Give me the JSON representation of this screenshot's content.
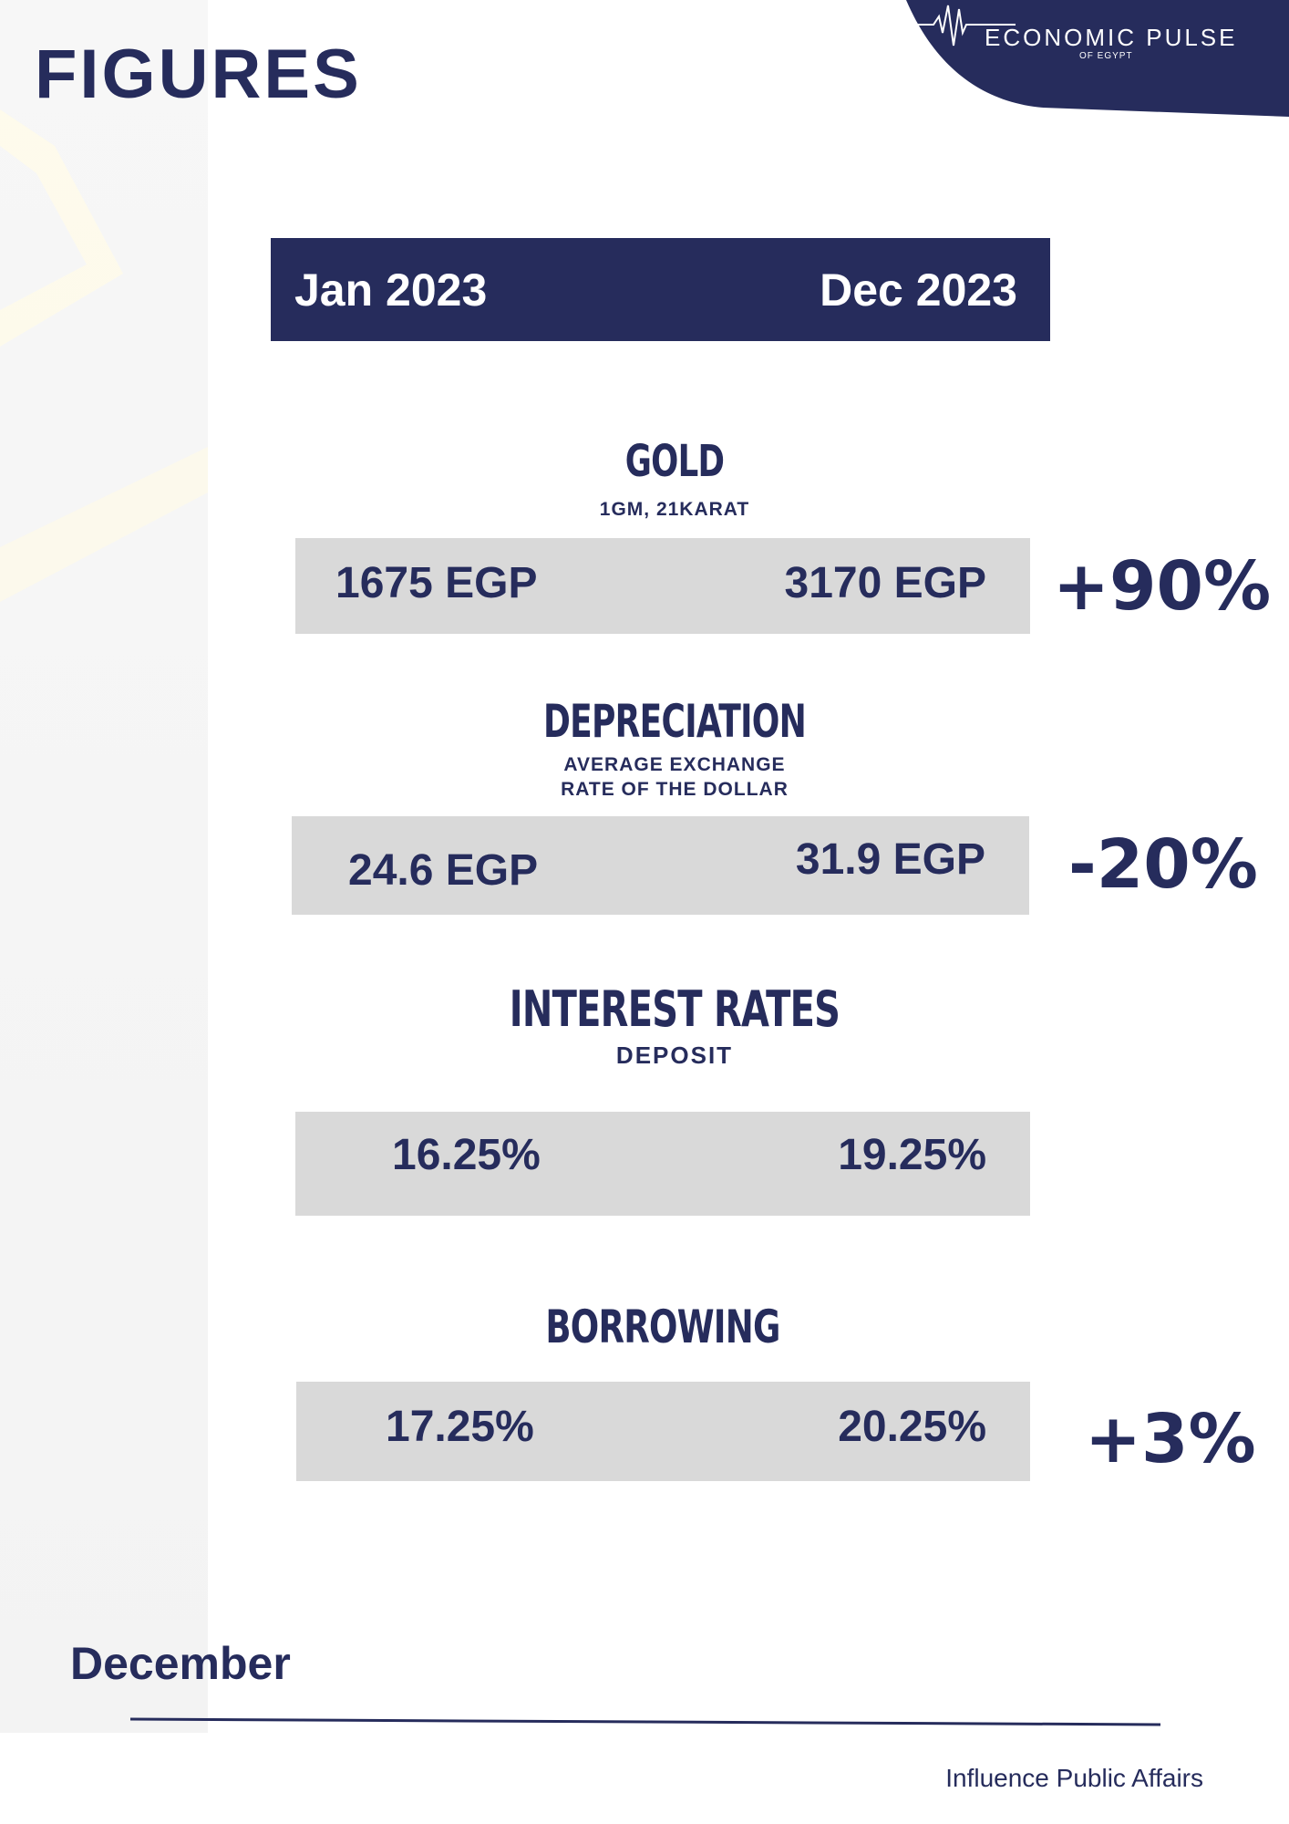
{
  "page": {
    "title": "FIGURES",
    "brand": {
      "name": "ECONOMIC PULSE",
      "sub": "OF EGYPT"
    },
    "period": {
      "start": "Jan 2023",
      "end": "Dec 2023"
    },
    "sections": [
      {
        "title": "GOLD",
        "subtitle": [
          "1GM, 21KARAT"
        ],
        "start": "1675 EGP",
        "end": "3170 EGP",
        "change": "+90%"
      },
      {
        "title": "DEPRECIATION",
        "subtitle": [
          "AVERAGE EXCHANGE",
          "RATE OF THE DOLLAR"
        ],
        "start": "24.6 EGP",
        "end": "31.9 EGP",
        "change": "-20%"
      },
      {
        "title": "INTEREST RATES",
        "subtitle": [
          "DEPOSIT"
        ],
        "start": "16.25%",
        "end": "19.25%",
        "change": ""
      },
      {
        "title": "BORROWING",
        "subtitle": [],
        "start": "17.25%",
        "end": "20.25%",
        "change": "+3%"
      }
    ],
    "footer": {
      "month": "December",
      "org": "Influence Public Affairs"
    }
  },
  "colors": {
    "navy": "#262c5c",
    "gray_row": "#d9d9d9",
    "panel": "#f5f5f5"
  }
}
